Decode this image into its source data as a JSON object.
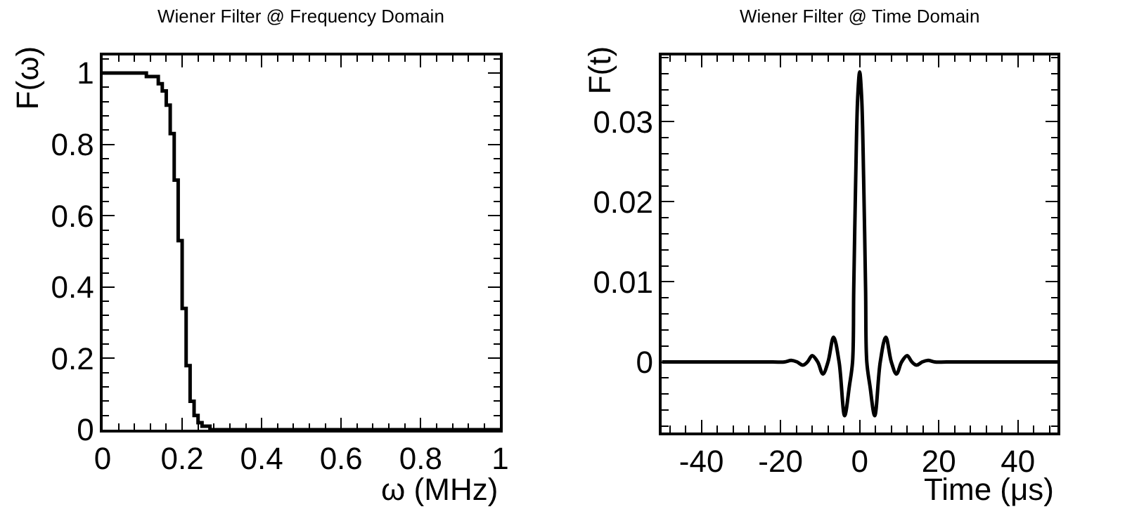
{
  "chart_data": [
    {
      "type": "step",
      "title": "Wiener Filter @ Frequency Domain",
      "xlabel": "ω (MHz)",
      "ylabel": "F(ω)",
      "x": [
        0,
        0.11,
        0.13,
        0.14,
        0.15,
        0.16,
        0.17,
        0.18,
        0.19,
        0.2,
        0.21,
        0.22,
        0.23,
        0.24,
        0.25,
        0.27,
        1.0
      ],
      "series": [
        {
          "color": "#000000",
          "values": [
            1.0,
            0.99,
            0.99,
            0.97,
            0.95,
            0.91,
            0.83,
            0.7,
            0.53,
            0.34,
            0.18,
            0.08,
            0.04,
            0.02,
            0.01,
            0,
            0
          ]
        }
      ],
      "xlim": [
        0,
        1
      ],
      "ylim": [
        0,
        1.05
      ],
      "xticks": [
        0,
        0.2,
        0.4,
        0.6,
        0.8,
        1
      ],
      "yticks": [
        0,
        0.2,
        0.4,
        0.6,
        0.8,
        1
      ],
      "marker": "none",
      "line_style": "solid"
    },
    {
      "type": "line",
      "title": "Wiener Filter @ Time Domain",
      "xlabel": "Time (μs)",
      "ylabel": "F(t)",
      "x": [
        -50,
        -22,
        -19,
        -17.3,
        -15.8,
        -14.4,
        -13.2,
        -12,
        -10.6,
        -9.3,
        -8,
        -6.6,
        -5.2,
        -3.8,
        -2.6,
        -1.8,
        -1.5,
        -1,
        -0.5,
        0,
        0.5,
        1,
        1.5,
        1.8,
        2.6,
        3.8,
        5.2,
        6.6,
        8,
        9.3,
        10.6,
        12,
        13.2,
        14.4,
        15.8,
        17.3,
        19,
        22,
        50
      ],
      "series": [
        {
          "color": "#000000",
          "values": [
            0,
            0,
            0,
            0.0002,
            0,
            -0.0004,
            0,
            0.0008,
            0,
            -0.0015,
            0,
            0.0031,
            0,
            -0.0067,
            -0.003,
            0,
            0.009,
            0.023,
            0.033,
            0.0362,
            0.033,
            0.023,
            0.009,
            0,
            -0.003,
            -0.0067,
            0,
            0.0031,
            0,
            -0.0015,
            0,
            0.0008,
            0,
            -0.0004,
            0,
            0.0002,
            0,
            0,
            0
          ]
        }
      ],
      "xlim": [
        -50,
        50
      ],
      "ylim": [
        -0.0088,
        0.0383
      ],
      "xticks": [
        -40,
        -20,
        0,
        20,
        40
      ],
      "yticks": [
        0,
        0.01,
        0.02,
        0.03
      ],
      "marker": "none",
      "line_style": "solid"
    }
  ]
}
